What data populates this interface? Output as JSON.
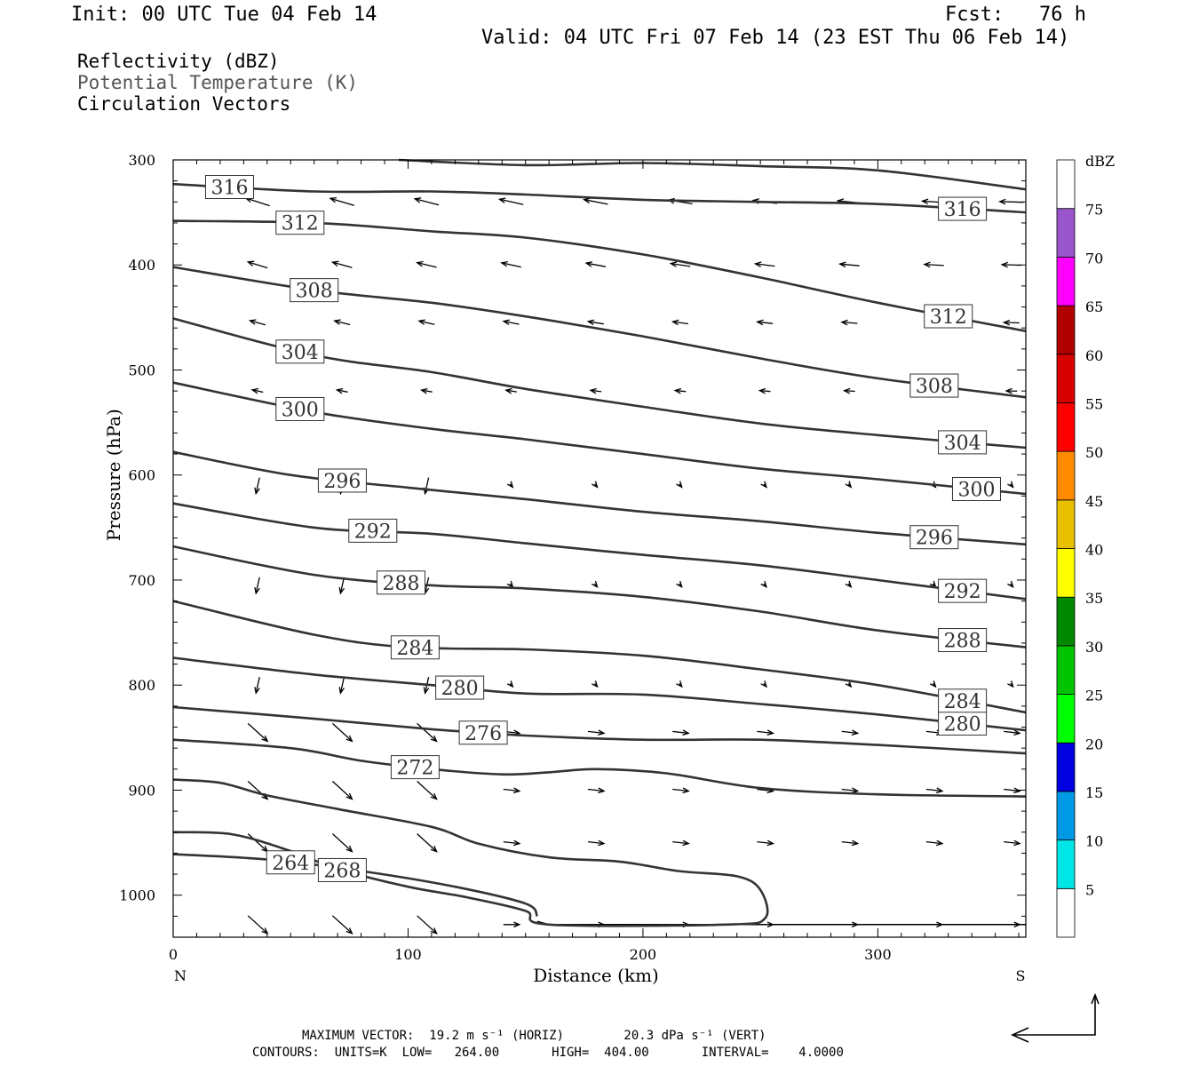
{
  "header": {
    "init": "Init: 00 UTC Tue 04 Feb 14",
    "fcst": "Fcst:   76 h",
    "valid": "Valid: 04 UTC Fri 07 Feb 14 (23 EST Thu 06 Feb 14)"
  },
  "fields": [
    {
      "label": "Reflectivity (dBZ)",
      "color": "#000000"
    },
    {
      "label": "Potential Temperature (K)",
      "color": "#555555"
    },
    {
      "label": "Circulation Vectors",
      "color": "#000000"
    }
  ],
  "footer": {
    "max_vector": "MAXIMUM VECTOR:  19.2 m s⁻¹ (HORIZ)        20.3 dPa s⁻¹ (VERT)",
    "contours": "CONTOURS:  UNITS=K  LOW=   264.00       HIGH=  404.00       INTERVAL=    4.0000"
  },
  "chart_data": {
    "type": "contour",
    "title": "",
    "xlabel": "Distance (km)",
    "ylabel": "Pressure (hPa)",
    "xlim": [
      0,
      363
    ],
    "ylim": [
      300,
      1040
    ],
    "y_inverted": true,
    "x_ticks": [
      0,
      100,
      200,
      300
    ],
    "y_ticks": [
      300,
      400,
      500,
      600,
      700,
      800,
      900,
      1000
    ],
    "x_end_labels": {
      "left": "N",
      "right": "S"
    },
    "colorbar": {
      "unit": "dBZ",
      "levels": [
        5,
        10,
        15,
        20,
        25,
        30,
        35,
        40,
        45,
        50,
        55,
        60,
        65,
        70,
        75
      ],
      "colors": [
        "#ffffff",
        "#00e5e5",
        "#0099e6",
        "#0000e0",
        "#00ff00",
        "#00c400",
        "#008800",
        "#ffff00",
        "#e8c000",
        "#ff8c00",
        "#ff0000",
        "#d80000",
        "#b00000",
        "#ff00ff",
        "#9955cc",
        "#ffffff"
      ]
    },
    "theta_contours": [
      {
        "label": "264",
        "points": [
          [
            0,
            961
          ],
          [
            40,
            966
          ],
          [
            80,
            977
          ],
          [
            120,
            992
          ],
          [
            150,
            1008
          ],
          [
            155,
            1020
          ]
        ]
      },
      {
        "label": "268",
        "points": [
          [
            0,
            940
          ],
          [
            25,
            942
          ],
          [
            50,
            958
          ],
          [
            70,
            975
          ],
          [
            100,
            992
          ],
          [
            125,
            1002
          ],
          [
            150,
            1015
          ],
          [
            160,
            1028
          ],
          [
            235,
            1028
          ],
          [
            252,
            1022
          ],
          [
            250,
            995
          ],
          [
            240,
            982
          ],
          [
            215,
            977
          ],
          [
            190,
            968
          ],
          [
            160,
            964
          ],
          [
            130,
            951
          ],
          [
            110,
            935
          ],
          [
            70,
            918
          ],
          [
            40,
            905
          ],
          [
            20,
            893
          ],
          [
            0,
            890
          ]
        ]
      },
      {
        "label": "272",
        "points": [
          [
            0,
            852
          ],
          [
            50,
            860
          ],
          [
            80,
            872
          ],
          [
            110,
            880
          ],
          [
            140,
            885
          ],
          [
            160,
            883
          ],
          [
            180,
            880
          ],
          [
            210,
            884
          ],
          [
            250,
            898
          ],
          [
            300,
            904
          ],
          [
            363,
            906
          ]
        ]
      },
      {
        "label": "276",
        "points": [
          [
            0,
            821
          ],
          [
            60,
            832
          ],
          [
            110,
            842
          ],
          [
            150,
            848
          ],
          [
            200,
            852
          ],
          [
            250,
            852
          ],
          [
            300,
            857
          ],
          [
            363,
            865
          ]
        ]
      },
      {
        "label": "280",
        "points": [
          [
            0,
            774
          ],
          [
            60,
            790
          ],
          [
            110,
            800
          ],
          [
            150,
            808
          ],
          [
            200,
            809
          ],
          [
            250,
            818
          ],
          [
            300,
            828
          ],
          [
            363,
            843
          ]
        ]
      },
      {
        "label": "284",
        "points": [
          [
            0,
            720
          ],
          [
            60,
            752
          ],
          [
            100,
            764
          ],
          [
            150,
            766
          ],
          [
            200,
            772
          ],
          [
            250,
            785
          ],
          [
            300,
            800
          ],
          [
            363,
            826
          ]
        ]
      },
      {
        "label": "288",
        "points": [
          [
            0,
            668
          ],
          [
            60,
            695
          ],
          [
            110,
            705
          ],
          [
            150,
            708
          ],
          [
            200,
            716
          ],
          [
            250,
            730
          ],
          [
            300,
            748
          ],
          [
            363,
            764
          ]
        ]
      },
      {
        "label": "292",
        "points": [
          [
            0,
            627
          ],
          [
            60,
            650
          ],
          [
            110,
            656
          ],
          [
            150,
            665
          ],
          [
            200,
            676
          ],
          [
            250,
            686
          ],
          [
            300,
            700
          ],
          [
            363,
            718
          ]
        ]
      },
      {
        "label": "296",
        "points": [
          [
            0,
            578
          ],
          [
            50,
            600
          ],
          [
            100,
            612
          ],
          [
            150,
            623
          ],
          [
            200,
            635
          ],
          [
            250,
            644
          ],
          [
            300,
            655
          ],
          [
            363,
            666
          ]
        ]
      },
      {
        "label": "300",
        "points": [
          [
            0,
            512
          ],
          [
            60,
            540
          ],
          [
            110,
            556
          ],
          [
            150,
            566
          ],
          [
            200,
            580
          ],
          [
            250,
            594
          ],
          [
            300,
            604
          ],
          [
            363,
            618
          ]
        ]
      },
      {
        "label": "304",
        "points": [
          [
            0,
            451
          ],
          [
            60,
            486
          ],
          [
            110,
            502
          ],
          [
            150,
            518
          ],
          [
            200,
            535
          ],
          [
            250,
            551
          ],
          [
            300,
            562
          ],
          [
            363,
            574
          ]
        ]
      },
      {
        "label": "308",
        "points": [
          [
            0,
            402
          ],
          [
            60,
            424
          ],
          [
            110,
            436
          ],
          [
            150,
            449
          ],
          [
            200,
            468
          ],
          [
            250,
            489
          ],
          [
            300,
            508
          ],
          [
            363,
            526
          ]
        ]
      },
      {
        "label": "312",
        "points": [
          [
            0,
            358
          ],
          [
            60,
            360
          ],
          [
            110,
            368
          ],
          [
            150,
            374
          ],
          [
            200,
            390
          ],
          [
            250,
            412
          ],
          [
            300,
            436
          ],
          [
            363,
            463
          ]
        ]
      },
      {
        "label": "316",
        "points": [
          [
            0,
            323
          ],
          [
            60,
            330
          ],
          [
            110,
            330
          ],
          [
            150,
            333
          ],
          [
            200,
            338
          ],
          [
            250,
            340
          ],
          [
            300,
            342
          ],
          [
            363,
            350
          ]
        ]
      },
      {
        "label": "",
        "points": [
          [
            96,
            300
          ],
          [
            150,
            305
          ],
          [
            200,
            303
          ],
          [
            250,
            306
          ],
          [
            300,
            310
          ],
          [
            363,
            328
          ]
        ]
      }
    ]
  }
}
